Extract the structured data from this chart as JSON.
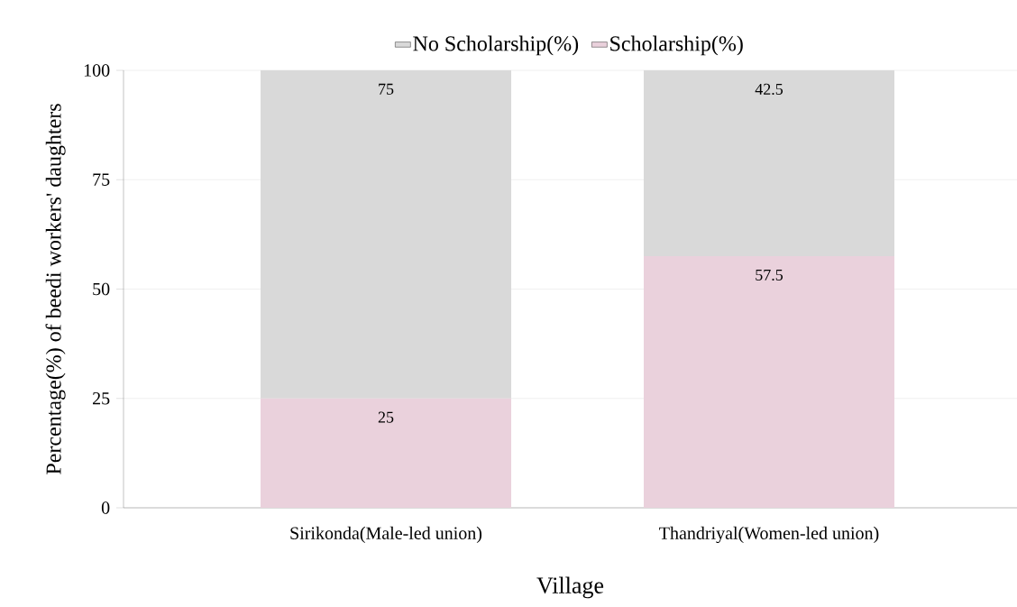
{
  "chart_data": {
    "type": "bar",
    "stacked": true,
    "xlabel": "Village",
    "ylabel": "Percentage(%) of beedi workers' daughters",
    "categories": [
      "Sirikonda(Male-led union)",
      "Thandriyal(Women-led union)"
    ],
    "series": [
      {
        "name": "Scholarship(%)",
        "color": "#ead1dc",
        "values": [
          25,
          57.5
        ]
      },
      {
        "name": "No Scholarship(%)",
        "color": "#d9d9d9",
        "values": [
          75,
          42.5
        ]
      }
    ],
    "ylim": [
      0,
      100
    ],
    "yticks": [
      0,
      25,
      50,
      75,
      100
    ],
    "grid": "y",
    "legend": "top",
    "data_labels": true
  }
}
